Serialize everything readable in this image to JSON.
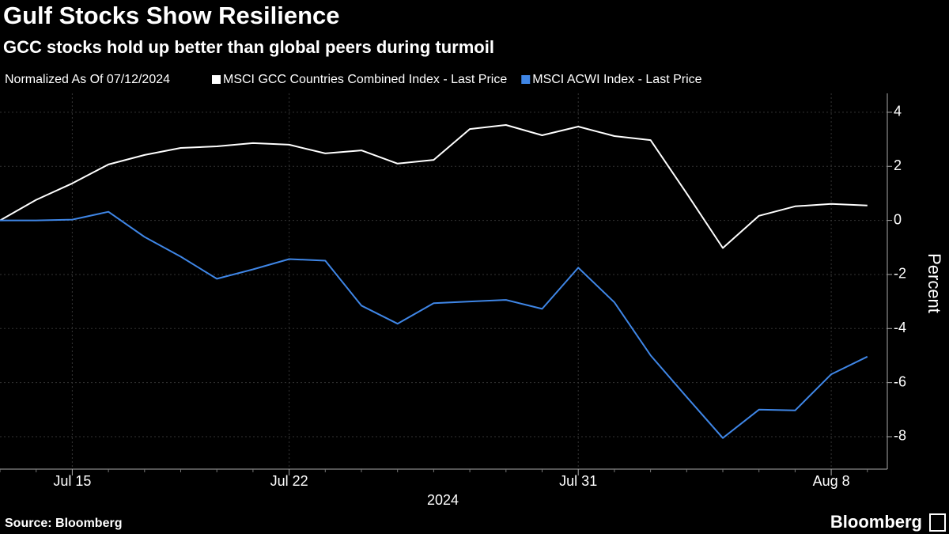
{
  "chart_data": {
    "type": "line",
    "title": "Gulf Stocks Show Resilience",
    "subtitle": "GCC stocks hold up better than global peers during turmoil",
    "legend_note": "Normalized As Of 07/12/2024",
    "categories": [
      null,
      null,
      "Jul 15",
      null,
      null,
      null,
      null,
      null,
      "Jul 22",
      null,
      null,
      null,
      null,
      null,
      null,
      null,
      "Jul 31",
      null,
      null,
      null,
      null,
      null,
      null,
      "Aug 8",
      null
    ],
    "xlabel": "2024",
    "ylabel": "Percent",
    "series": [
      {
        "name": "MSCI GCC Countries Combined Index - Last Price",
        "color": "#ffffff",
        "values": [
          0,
          0.76,
          1.37,
          2.07,
          2.42,
          2.68,
          2.74,
          2.86,
          2.8,
          2.48,
          2.59,
          2.1,
          2.24,
          3.38,
          3.53,
          3.15,
          3.47,
          3.12,
          2.97,
          1.0,
          -1.02,
          0.17,
          0.52,
          0.61,
          0.55
        ]
      },
      {
        "name": "MSCI ACWI Index - Last Price",
        "color": "#3f86e6",
        "values": [
          0,
          0,
          0.03,
          0.32,
          -0.61,
          -1.34,
          -2.16,
          -1.81,
          -1.43,
          -1.49,
          -3.15,
          -3.82,
          -3.06,
          -3.0,
          -2.94,
          -3.27,
          -1.75,
          -3.03,
          -4.99,
          -6.53,
          -8.05,
          -7.0,
          -7.03,
          -5.69,
          -5.04
        ]
      }
    ],
    "ylim": [
      -9.2,
      4.7
    ],
    "yticks": [
      -8,
      -6,
      -4,
      -2,
      0,
      2,
      4
    ],
    "grid": true,
    "source": "Source: Bloomberg",
    "brand": "Bloomberg"
  }
}
